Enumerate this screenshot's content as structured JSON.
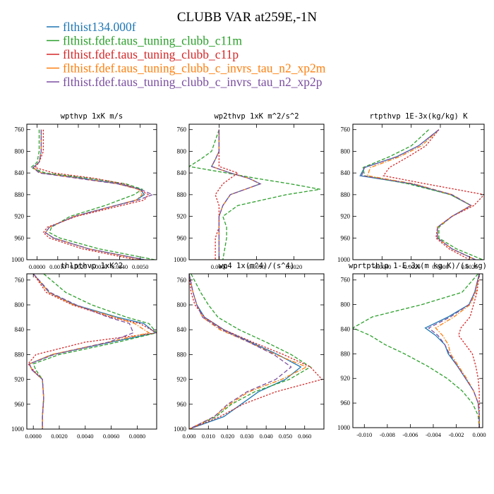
{
  "figure": {
    "title": "CLUBB VAR at259E,-1N"
  },
  "legend": {
    "entries": [
      {
        "label": "flthist134.000f",
        "color": "#1f77b4"
      },
      {
        "label": "flthist.fdef.taus_tuning_clubb_c11m",
        "color": "#2ca02c"
      },
      {
        "label": "flthist.fdef.taus_tuning_clubb_c11p",
        "color": "#d62728"
      },
      {
        "label": "flthist.fdef.taus_tuning_clubb_c_invrs_tau_n2_xp2m",
        "color": "#ff7f0e"
      },
      {
        "label": "flthist.fdef.taus_tuning_clubb_c_invrs_tau_n2_xp2p",
        "color": "#7b4fa0"
      }
    ]
  },
  "chart_data": [
    {
      "type": "line",
      "title": "wpthvp  1xK m/s",
      "xlim": [
        -0.0005,
        0.0058
      ],
      "ylim": [
        1000,
        750
      ],
      "xticks": [
        0.0,
        0.001,
        0.002,
        0.003,
        0.004,
        0.005
      ],
      "xtick_labels": [
        "0.0000",
        "0.0010",
        "0.0020",
        "0.0030",
        "0.0040",
        "0.0050"
      ],
      "yticks": [
        760,
        800,
        840,
        880,
        920,
        960,
        1000
      ],
      "y": [
        760,
        800,
        820,
        830,
        840,
        850,
        860,
        870,
        880,
        890,
        900,
        920,
        940,
        950,
        960,
        980,
        1000
      ],
      "series": [
        {
          "name": "flthist134.000f",
          "x": [
            0.0002,
            0.0002,
            0.0001,
            -0.0002,
            0.0002,
            0.0022,
            0.004,
            0.005,
            0.0052,
            0.0048,
            0.0038,
            0.0018,
            0.0006,
            0.0004,
            0.0008,
            0.0025,
            0.0052
          ]
        },
        {
          "name": "flthist.fdef.taus_tuning_clubb_c11m",
          "x": [
            0.0001,
            0.0001,
            0.0,
            -0.0003,
            0.0004,
            0.0026,
            0.0043,
            0.0051,
            0.0047,
            0.004,
            0.0033,
            0.0016,
            0.0007,
            0.0006,
            0.0011,
            0.003,
            0.0057
          ]
        },
        {
          "name": "flthist.fdef.taus_tuning_clubb_c11p",
          "x": [
            0.0003,
            0.0003,
            0.0001,
            -0.0001,
            0.0008,
            0.0028,
            0.0042,
            0.0049,
            0.0054,
            0.0052,
            0.0041,
            0.0019,
            0.0005,
            0.0003,
            0.0006,
            0.0022,
            0.0048
          ]
        },
        {
          "name": "flthist.fdef.taus_tuning_clubb_c_invrs_tau_n2_xp2m",
          "x": [
            0.0002,
            0.0002,
            0.0001,
            -0.0002,
            0.0002,
            0.0021,
            0.0039,
            0.0049,
            0.0051,
            0.0048,
            0.0038,
            0.0018,
            0.0006,
            0.0004,
            0.0008,
            0.0025,
            0.0051
          ]
        },
        {
          "name": "flthist.fdef.taus_tuning_clubb_c_invrs_tau_n2_xp2p",
          "x": [
            0.0002,
            0.0002,
            0.0001,
            -0.0002,
            0.0001,
            0.002,
            0.0039,
            0.005,
            0.0056,
            0.0049,
            0.0038,
            0.0018,
            0.0006,
            0.0004,
            0.0008,
            0.0025,
            0.0052
          ]
        }
      ]
    },
    {
      "type": "line",
      "title": "wp2thvp  1xK m^2/s^2",
      "xlim": [
        -0.0008,
        0.0028
      ],
      "ylim": [
        1000,
        750
      ],
      "xticks": [
        0.0,
        0.001,
        0.002
      ],
      "xtick_labels": [
        "0.0000",
        "0.0010",
        "0.0020"
      ],
      "yticks": [
        760,
        800,
        840,
        880,
        920,
        960,
        1000
      ],
      "y": [
        760,
        800,
        815,
        828,
        840,
        850,
        860,
        870,
        880,
        900,
        920,
        940,
        960,
        1000
      ],
      "series": [
        {
          "name": "flthist134.000f",
          "x": [
            0.0,
            0.0,
            -0.0001,
            -0.0002,
            0.0003,
            0.0008,
            0.0011,
            0.0007,
            0.0003,
            0.0001,
            0.0,
            0.0,
            0.0,
            0.0
          ]
        },
        {
          "name": "flthist.fdef.taus_tuning_clubb_c11m",
          "x": [
            0.0,
            -0.0002,
            -0.0005,
            -0.0008,
            0.0002,
            0.001,
            0.0019,
            0.0027,
            0.0018,
            0.0005,
            0.0001,
            0.0002,
            0.0002,
            0.0001
          ]
        },
        {
          "name": "flthist.fdef.taus_tuning_clubb_c11p",
          "x": [
            0.0,
            0.0,
            0.0,
            0.0,
            0.0005,
            0.0003,
            0.0001,
            0.0,
            -0.0001,
            0.0,
            0.0,
            0.0,
            -0.0001,
            -0.0001
          ]
        },
        {
          "name": "flthist.fdef.taus_tuning_clubb_c_invrs_tau_n2_xp2m",
          "x": [
            0.0,
            0.0,
            -0.0001,
            -0.0002,
            0.0003,
            0.0008,
            0.0011,
            0.0007,
            0.0003,
            0.0001,
            0.0,
            0.0,
            0.0,
            0.0
          ]
        },
        {
          "name": "flthist.fdef.taus_tuning_clubb_c_invrs_tau_n2_xp2p",
          "x": [
            0.0,
            0.0,
            -0.0001,
            -0.0002,
            0.0003,
            0.0008,
            0.0011,
            0.0007,
            0.0003,
            0.0001,
            0.0,
            0.0,
            0.0,
            0.0
          ]
        }
      ]
    },
    {
      "type": "line",
      "title": "rtpthvp  1E-3x(kg/kg) K",
      "xlim": [
        -0.006,
        0.003
      ],
      "ylim": [
        1000,
        750
      ],
      "xticks": [
        -0.004,
        -0.002,
        0.0,
        0.002
      ],
      "xtick_labels": [
        "-0.0040",
        "-0.0020",
        "0.0000",
        "0.0020"
      ],
      "yticks": [
        760,
        800,
        840,
        880,
        920,
        960,
        1000
      ],
      "y": [
        760,
        790,
        810,
        830,
        845,
        860,
        880,
        900,
        920,
        940,
        960,
        980,
        1000
      ],
      "series": [
        {
          "name": "flthist134.000f",
          "x": [
            -0.0001,
            -0.0015,
            -0.003,
            -0.0052,
            -0.0055,
            -0.002,
            0.0007,
            0.0021,
            0.0008,
            -0.0002,
            -0.0002,
            0.0008,
            0.0024
          ]
        },
        {
          "name": "flthist.fdef.taus_tuning_clubb_c11m",
          "x": [
            -0.0008,
            -0.002,
            -0.0035,
            -0.0053,
            -0.0052,
            -0.0022,
            0.0007,
            0.0021,
            0.0008,
            -0.0001,
            -0.0001,
            0.0011,
            0.0029
          ]
        },
        {
          "name": "flthist.fdef.taus_tuning_clubb_c11p",
          "x": [
            -0.0001,
            -0.001,
            -0.0022,
            -0.0035,
            -0.0039,
            -0.001,
            0.003,
            0.0023,
            0.0008,
            -0.0002,
            -0.0003,
            0.0006,
            0.002
          ]
        },
        {
          "name": "flthist.fdef.taus_tuning_clubb_c_invrs_tau_n2_xp2m",
          "x": [
            -0.0001,
            -0.0013,
            -0.0028,
            -0.0048,
            -0.005,
            -0.0018,
            0.0008,
            0.0021,
            0.0008,
            -0.0002,
            -0.0002,
            0.0008,
            0.0024
          ]
        },
        {
          "name": "flthist.fdef.taus_tuning_clubb_c_invrs_tau_n2_xp2p",
          "x": [
            -0.0001,
            -0.0015,
            -0.003,
            -0.0052,
            -0.0054,
            -0.0019,
            0.0008,
            0.0021,
            0.0008,
            -0.0002,
            -0.0002,
            0.0008,
            0.0024
          ]
        }
      ]
    },
    {
      "type": "line",
      "title": "thlpthvp  1xK^2",
      "xlim": [
        -0.0005,
        0.0095
      ],
      "ylim": [
        1000,
        750
      ],
      "xticks": [
        0.0,
        0.002,
        0.004,
        0.006,
        0.008
      ],
      "xtick_labels": [
        "0.0000",
        "0.0020",
        "0.0040",
        "0.0060",
        "0.0080"
      ],
      "yticks": [
        760,
        800,
        840,
        880,
        920,
        960,
        1000
      ],
      "y": [
        750,
        780,
        800,
        820,
        830,
        845,
        860,
        880,
        895,
        905,
        920,
        950,
        980,
        1000
      ],
      "series": [
        {
          "name": "flthist134.000f",
          "x": [
            0.0,
            0.0012,
            0.0032,
            0.0065,
            0.0085,
            0.0094,
            0.006,
            0.0015,
            -0.0003,
            -0.0001,
            0.0007,
            0.0008,
            0.0007,
            0.0007
          ]
        },
        {
          "name": "flthist.fdef.taus_tuning_clubb_c11m",
          "x": [
            0.0008,
            0.0025,
            0.0045,
            0.0072,
            0.0089,
            0.0095,
            0.0065,
            0.002,
            0.0,
            0.0002,
            0.0007,
            0.0008,
            0.0007,
            0.0007
          ]
        },
        {
          "name": "flthist.fdef.taus_tuning_clubb_c11p",
          "x": [
            0.0,
            0.001,
            0.003,
            0.006,
            0.0082,
            0.0095,
            0.004,
            0.0002,
            -0.0004,
            0.0,
            0.0007,
            0.0008,
            0.0007,
            0.0007
          ]
        },
        {
          "name": "flthist.fdef.taus_tuning_clubb_c_invrs_tau_n2_xp2m",
          "x": [
            0.0,
            0.0012,
            0.0031,
            0.0063,
            0.0078,
            0.0089,
            0.0058,
            0.0014,
            -0.0003,
            -0.0001,
            0.0007,
            0.0008,
            0.0007,
            0.0007
          ]
        },
        {
          "name": "flthist.fdef.taus_tuning_clubb_c_invrs_tau_n2_xp2p",
          "x": [
            0.0,
            0.0013,
            0.0033,
            0.0058,
            0.0074,
            0.0077,
            0.0058,
            0.0016,
            -0.0003,
            -0.0001,
            0.0007,
            0.0008,
            0.0007,
            0.0007
          ]
        }
      ]
    },
    {
      "type": "line",
      "title": "wp4  1x(m^4)/(s^4)",
      "xlim": [
        0.0,
        0.07
      ],
      "ylim": [
        1000,
        750
      ],
      "xticks": [
        0.0,
        0.01,
        0.02,
        0.03,
        0.04,
        0.05,
        0.06
      ],
      "xtick_labels": [
        "0.000",
        "0.010",
        "0.020",
        "0.030",
        "0.040",
        "0.050",
        "0.060"
      ],
      "yticks": [
        760,
        800,
        840,
        880,
        920,
        960,
        1000
      ],
      "y": [
        750,
        780,
        800,
        820,
        840,
        860,
        880,
        900,
        920,
        940,
        960,
        980,
        1000
      ],
      "series": [
        {
          "name": "flthist134.000f",
          "x": [
            0.0,
            0.002,
            0.004,
            0.008,
            0.018,
            0.032,
            0.046,
            0.058,
            0.05,
            0.036,
            0.027,
            0.018,
            0.0
          ]
        },
        {
          "name": "flthist.fdef.taus_tuning_clubb_c11m",
          "x": [
            0.001,
            0.006,
            0.01,
            0.015,
            0.026,
            0.04,
            0.053,
            0.063,
            0.052,
            0.034,
            0.022,
            0.014,
            0.0
          ]
        },
        {
          "name": "flthist.fdef.taus_tuning_clubb_c11p",
          "x": [
            0.0,
            0.001,
            0.003,
            0.008,
            0.018,
            0.033,
            0.049,
            0.063,
            0.069,
            0.045,
            0.028,
            0.016,
            0.0
          ]
        },
        {
          "name": "flthist.fdef.taus_tuning_clubb_c_invrs_tau_n2_xp2m",
          "x": [
            0.0,
            0.002,
            0.004,
            0.007,
            0.016,
            0.031,
            0.045,
            0.061,
            0.048,
            0.031,
            0.021,
            0.013,
            0.0
          ]
        },
        {
          "name": "flthist.fdef.taus_tuning_clubb_c_invrs_tau_n2_xp2p",
          "x": [
            0.0,
            0.002,
            0.004,
            0.007,
            0.017,
            0.031,
            0.044,
            0.053,
            0.045,
            0.03,
            0.02,
            0.013,
            0.0
          ]
        }
      ]
    },
    {
      "type": "line",
      "title": "wprtpthlp  1-E-3x(m kg K)/(s kg)",
      "xlim": [
        -0.011,
        0.0003
      ],
      "ylim": [
        1000,
        750
      ],
      "xticks": [
        -0.01,
        -0.008,
        -0.006,
        -0.004,
        -0.002,
        0.0
      ],
      "xtick_labels": [
        "-0.010",
        "-0.008",
        "-0.006",
        "-0.004",
        "-0.002",
        "0.000"
      ],
      "yticks": [
        760,
        800,
        840,
        880,
        920,
        960,
        1000
      ],
      "y": [
        750,
        780,
        800,
        820,
        838,
        850,
        865,
        880,
        900,
        920,
        940,
        960,
        980,
        1000
      ],
      "series": [
        {
          "name": "flthist134.000f",
          "x": [
            0.0,
            -0.0004,
            -0.0009,
            -0.0027,
            -0.0047,
            -0.0038,
            -0.003,
            -0.0027,
            -0.0019,
            -0.0012,
            -0.0005,
            -0.0001,
            0.0,
            0.0
          ]
        },
        {
          "name": "flthist.fdef.taus_tuning_clubb_c11m",
          "x": [
            -0.0001,
            -0.0015,
            -0.005,
            -0.0093,
            -0.011,
            -0.0095,
            -0.0082,
            -0.0065,
            -0.0045,
            -0.0028,
            -0.0015,
            -0.0006,
            -0.0001,
            0.0
          ]
        },
        {
          "name": "flthist.fdef.taus_tuning_clubb_c11p",
          "x": [
            0.0,
            -0.0002,
            -0.0005,
            -0.0008,
            -0.0016,
            -0.0018,
            -0.0012,
            -0.0006,
            -0.0003,
            -0.0001,
            0.0,
            0.0,
            0.0,
            0.0
          ]
        },
        {
          "name": "flthist.fdef.taus_tuning_clubb_c_invrs_tau_n2_xp2m",
          "x": [
            0.0,
            -0.0003,
            -0.0008,
            -0.0022,
            -0.0038,
            -0.0032,
            -0.0027,
            -0.0025,
            -0.0018,
            -0.0011,
            -0.0005,
            -0.0001,
            0.0,
            0.0
          ]
        },
        {
          "name": "flthist.fdef.taus_tuning_clubb_c_invrs_tau_n2_xp2p",
          "x": [
            0.0,
            -0.0004,
            -0.0009,
            -0.0025,
            -0.0044,
            -0.0036,
            -0.003,
            -0.0026,
            -0.0019,
            -0.0012,
            -0.0005,
            -0.0001,
            0.0,
            0.0
          ]
        }
      ]
    }
  ]
}
